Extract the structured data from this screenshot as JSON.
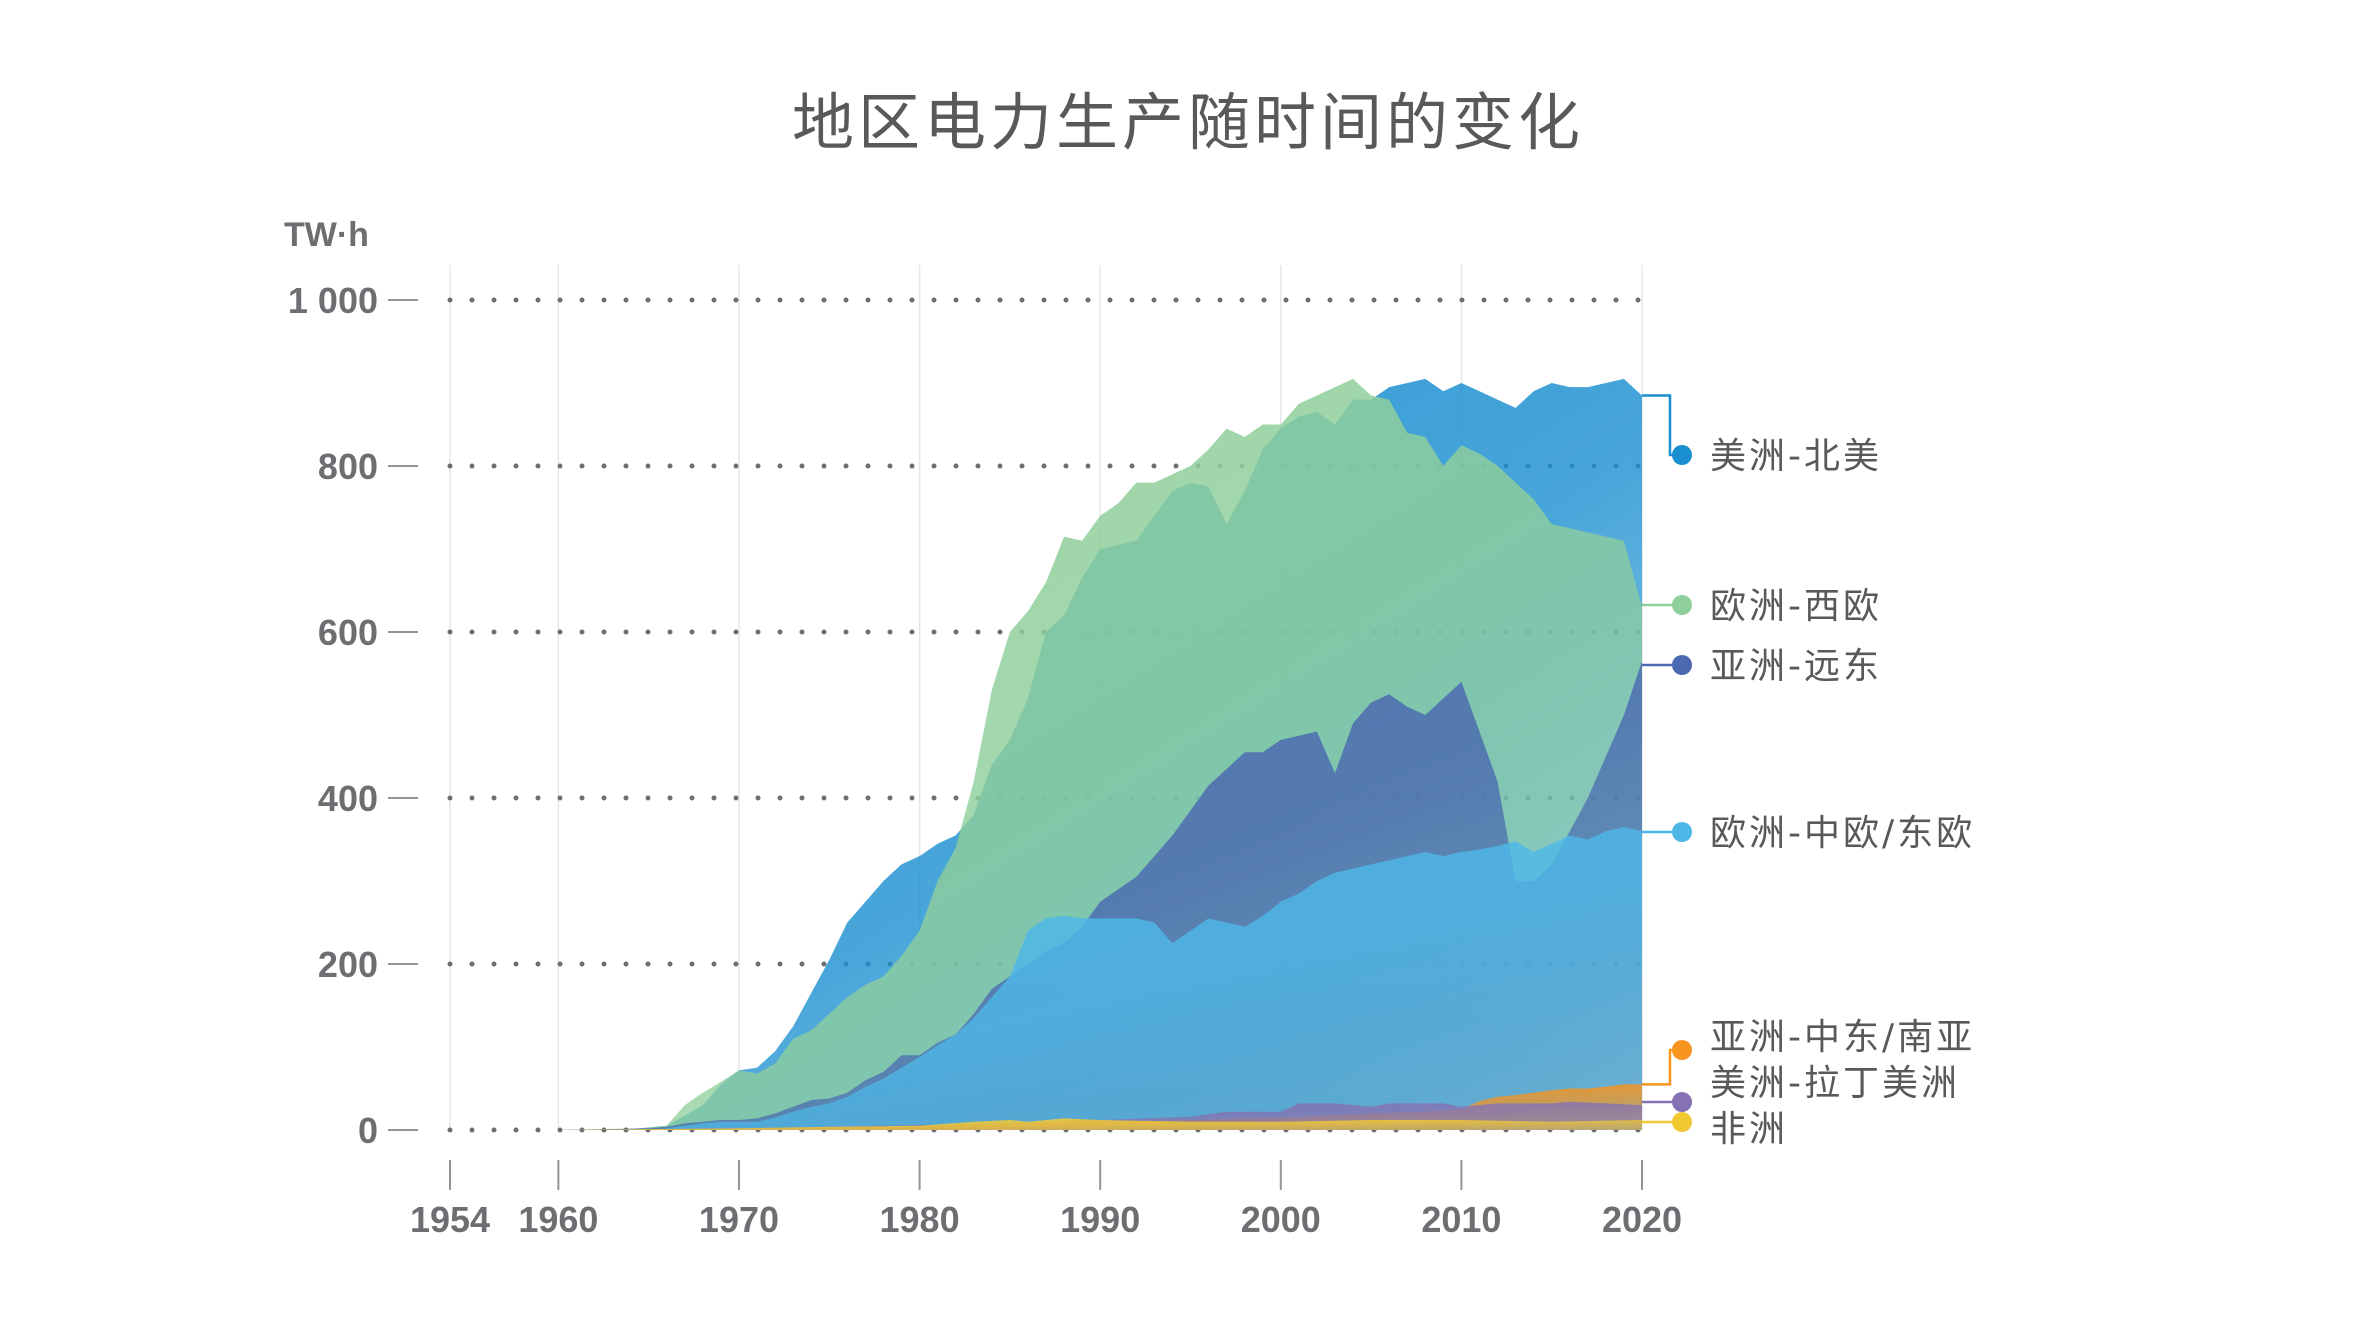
{
  "chart_data": {
    "type": "area",
    "title": "地区电力生产随时间的变化",
    "ylabel": "TW·h",
    "xlabel": "",
    "xlim": [
      1954,
      2020
    ],
    "ylim": [
      0,
      1000
    ],
    "x_ticks": [
      "1954",
      "1960",
      "1970",
      "1980",
      "1990",
      "2000",
      "2010",
      "2020"
    ],
    "y_ticks": [
      "0",
      "200",
      "400",
      "600",
      "800",
      "1 000"
    ],
    "grid": "dotted horizontal at y ticks, faint vertical at x ticks",
    "legend_placement": "right",
    "series": [
      {
        "name": "美洲-北美",
        "color": "#1a8fd0",
        "points": [
          [
            1954,
            0
          ],
          [
            1960,
            0
          ],
          [
            1964,
            1
          ],
          [
            1966,
            5
          ],
          [
            1968,
            30
          ],
          [
            1969,
            55
          ],
          [
            1970,
            72
          ],
          [
            1971,
            75
          ],
          [
            1972,
            95
          ],
          [
            1973,
            125
          ],
          [
            1974,
            165
          ],
          [
            1975,
            205
          ],
          [
            1976,
            250
          ],
          [
            1977,
            275
          ],
          [
            1978,
            300
          ],
          [
            1979,
            320
          ],
          [
            1980,
            330
          ],
          [
            1981,
            345
          ],
          [
            1982,
            355
          ],
          [
            1983,
            380
          ],
          [
            1984,
            440
          ],
          [
            1985,
            470
          ],
          [
            1986,
            520
          ],
          [
            1987,
            600
          ],
          [
            1988,
            620
          ],
          [
            1989,
            665
          ],
          [
            1990,
            700
          ],
          [
            1991,
            705
          ],
          [
            1992,
            710
          ],
          [
            1993,
            740
          ],
          [
            1994,
            770
          ],
          [
            1995,
            780
          ],
          [
            1996,
            775
          ],
          [
            1997,
            730
          ],
          [
            1998,
            770
          ],
          [
            1999,
            820
          ],
          [
            2000,
            845
          ],
          [
            2001,
            860
          ],
          [
            2002,
            865
          ],
          [
            2003,
            850
          ],
          [
            2004,
            880
          ],
          [
            2005,
            880
          ],
          [
            2006,
            895
          ],
          [
            2007,
            900
          ],
          [
            2008,
            905
          ],
          [
            2009,
            890
          ],
          [
            2010,
            900
          ],
          [
            2011,
            890
          ],
          [
            2012,
            880
          ],
          [
            2013,
            870
          ],
          [
            2014,
            890
          ],
          [
            2015,
            900
          ],
          [
            2016,
            895
          ],
          [
            2017,
            895
          ],
          [
            2018,
            900
          ],
          [
            2019,
            905
          ],
          [
            2020,
            885
          ]
        ]
      },
      {
        "name": "欧洲-西欧",
        "color": "#8fcf9b",
        "points": [
          [
            1954,
            0
          ],
          [
            1960,
            0
          ],
          [
            1964,
            1
          ],
          [
            1966,
            5
          ],
          [
            1967,
            30
          ],
          [
            1968,
            45
          ],
          [
            1969,
            58
          ],
          [
            1970,
            72
          ],
          [
            1971,
            68
          ],
          [
            1972,
            80
          ],
          [
            1973,
            110
          ],
          [
            1974,
            120
          ],
          [
            1975,
            140
          ],
          [
            1976,
            160
          ],
          [
            1977,
            175
          ],
          [
            1978,
            185
          ],
          [
            1979,
            210
          ],
          [
            1980,
            240
          ],
          [
            1981,
            300
          ],
          [
            1982,
            340
          ],
          [
            1983,
            420
          ],
          [
            1984,
            530
          ],
          [
            1985,
            600
          ],
          [
            1986,
            625
          ],
          [
            1987,
            660
          ],
          [
            1988,
            715
          ],
          [
            1989,
            710
          ],
          [
            1990,
            740
          ],
          [
            1991,
            755
          ],
          [
            1992,
            780
          ],
          [
            1993,
            780
          ],
          [
            1994,
            790
          ],
          [
            1995,
            800
          ],
          [
            1996,
            820
          ],
          [
            1997,
            845
          ],
          [
            1998,
            835
          ],
          [
            1999,
            850
          ],
          [
            2000,
            850
          ],
          [
            2001,
            875
          ],
          [
            2002,
            885
          ],
          [
            2003,
            895
          ],
          [
            2004,
            905
          ],
          [
            2005,
            885
          ],
          [
            2006,
            880
          ],
          [
            2007,
            840
          ],
          [
            2008,
            835
          ],
          [
            2009,
            800
          ],
          [
            2010,
            825
          ],
          [
            2011,
            815
          ],
          [
            2012,
            800
          ],
          [
            2013,
            780
          ],
          [
            2014,
            760
          ],
          [
            2015,
            730
          ],
          [
            2016,
            725
          ],
          [
            2017,
            720
          ],
          [
            2018,
            715
          ],
          [
            2019,
            710
          ],
          [
            2020,
            630
          ]
        ]
      },
      {
        "name": "亚洲-远东",
        "color": "#4a69b0",
        "points": [
          [
            1954,
            0
          ],
          [
            1960,
            0
          ],
          [
            1965,
            2
          ],
          [
            1966,
            4
          ],
          [
            1967,
            8
          ],
          [
            1968,
            10
          ],
          [
            1969,
            12
          ],
          [
            1970,
            12
          ],
          [
            1971,
            14
          ],
          [
            1972,
            20
          ],
          [
            1973,
            28
          ],
          [
            1974,
            36
          ],
          [
            1975,
            38
          ],
          [
            1976,
            45
          ],
          [
            1977,
            60
          ],
          [
            1978,
            70
          ],
          [
            1979,
            90
          ],
          [
            1980,
            90
          ],
          [
            1981,
            105
          ],
          [
            1982,
            115
          ],
          [
            1983,
            140
          ],
          [
            1984,
            170
          ],
          [
            1985,
            185
          ],
          [
            1986,
            200
          ],
          [
            1987,
            215
          ],
          [
            1988,
            225
          ],
          [
            1989,
            245
          ],
          [
            1990,
            275
          ],
          [
            1991,
            290
          ],
          [
            1992,
            305
          ],
          [
            1993,
            330
          ],
          [
            1994,
            355
          ],
          [
            1995,
            385
          ],
          [
            1996,
            415
          ],
          [
            1997,
            435
          ],
          [
            1998,
            455
          ],
          [
            1999,
            455
          ],
          [
            2000,
            470
          ],
          [
            2001,
            475
          ],
          [
            2002,
            480
          ],
          [
            2003,
            430
          ],
          [
            2004,
            490
          ],
          [
            2005,
            515
          ],
          [
            2006,
            525
          ],
          [
            2007,
            510
          ],
          [
            2008,
            500
          ],
          [
            2009,
            520
          ],
          [
            2010,
            540
          ],
          [
            2011,
            480
          ],
          [
            2012,
            420
          ],
          [
            2013,
            300
          ],
          [
            2014,
            300
          ],
          [
            2015,
            320
          ],
          [
            2016,
            360
          ],
          [
            2017,
            400
          ],
          [
            2018,
            450
          ],
          [
            2019,
            500
          ],
          [
            2020,
            565
          ]
        ]
      },
      {
        "name": "欧洲-中欧/东欧",
        "color": "#4db8e8",
        "points": [
          [
            1954,
            0
          ],
          [
            1960,
            0
          ],
          [
            1965,
            0
          ],
          [
            1966,
            2
          ],
          [
            1967,
            5
          ],
          [
            1968,
            8
          ],
          [
            1969,
            10
          ],
          [
            1970,
            10
          ],
          [
            1971,
            10
          ],
          [
            1972,
            15
          ],
          [
            1973,
            22
          ],
          [
            1974,
            28
          ],
          [
            1975,
            32
          ],
          [
            1976,
            40
          ],
          [
            1977,
            52
          ],
          [
            1978,
            62
          ],
          [
            1979,
            75
          ],
          [
            1980,
            88
          ],
          [
            1981,
            102
          ],
          [
            1982,
            115
          ],
          [
            1983,
            135
          ],
          [
            1984,
            160
          ],
          [
            1985,
            185
          ],
          [
            1986,
            240
          ],
          [
            1987,
            255
          ],
          [
            1988,
            258
          ],
          [
            1989,
            255
          ],
          [
            1990,
            255
          ],
          [
            1991,
            255
          ],
          [
            1992,
            255
          ],
          [
            1993,
            250
          ],
          [
            1994,
            225
          ],
          [
            1995,
            240
          ],
          [
            1996,
            255
          ],
          [
            1997,
            250
          ],
          [
            1998,
            245
          ],
          [
            1999,
            258
          ],
          [
            2000,
            275
          ],
          [
            2001,
            285
          ],
          [
            2002,
            300
          ],
          [
            2003,
            310
          ],
          [
            2004,
            315
          ],
          [
            2005,
            320
          ],
          [
            2006,
            325
          ],
          [
            2007,
            330
          ],
          [
            2008,
            335
          ],
          [
            2009,
            330
          ],
          [
            2010,
            335
          ],
          [
            2011,
            338
          ],
          [
            2012,
            342
          ],
          [
            2013,
            348
          ],
          [
            2014,
            335
          ],
          [
            2015,
            345
          ],
          [
            2016,
            355
          ],
          [
            2017,
            350
          ],
          [
            2018,
            360
          ],
          [
            2019,
            365
          ],
          [
            2020,
            360
          ]
        ]
      },
      {
        "name": "亚洲-中东/南亚",
        "color": "#f7941d",
        "points": [
          [
            1954,
            0
          ],
          [
            1960,
            0
          ],
          [
            1970,
            1
          ],
          [
            1975,
            3
          ],
          [
            1980,
            5
          ],
          [
            1985,
            8
          ],
          [
            1990,
            10
          ],
          [
            1995,
            12
          ],
          [
            2000,
            15
          ],
          [
            2005,
            20
          ],
          [
            2008,
            22
          ],
          [
            2010,
            25
          ],
          [
            2011,
            35
          ],
          [
            2012,
            40
          ],
          [
            2013,
            42
          ],
          [
            2014,
            45
          ],
          [
            2015,
            48
          ],
          [
            2016,
            50
          ],
          [
            2017,
            50
          ],
          [
            2018,
            52
          ],
          [
            2019,
            55
          ],
          [
            2020,
            55
          ]
        ]
      },
      {
        "name": "美洲-拉丁美洲",
        "color": "#8572b2",
        "points": [
          [
            1954,
            0
          ],
          [
            1960,
            0
          ],
          [
            1970,
            2
          ],
          [
            1975,
            4
          ],
          [
            1980,
            6
          ],
          [
            1985,
            8
          ],
          [
            1990,
            12
          ],
          [
            1995,
            16
          ],
          [
            1997,
            22
          ],
          [
            2000,
            22
          ],
          [
            2001,
            32
          ],
          [
            2003,
            32
          ],
          [
            2005,
            28
          ],
          [
            2006,
            32
          ],
          [
            2009,
            32
          ],
          [
            2010,
            28
          ],
          [
            2012,
            32
          ],
          [
            2015,
            32
          ],
          [
            2016,
            34
          ],
          [
            2018,
            32
          ],
          [
            2020,
            30
          ]
        ]
      },
      {
        "name": "非洲",
        "color": "#f2c832",
        "points": [
          [
            1954,
            0
          ],
          [
            1960,
            0
          ],
          [
            1970,
            2
          ],
          [
            1975,
            4
          ],
          [
            1980,
            5
          ],
          [
            1983,
            10
          ],
          [
            1985,
            12
          ],
          [
            1986,
            10
          ],
          [
            1988,
            14
          ],
          [
            1990,
            12
          ],
          [
            1995,
            10
          ],
          [
            2000,
            10
          ],
          [
            2005,
            12
          ],
          [
            2010,
            12
          ],
          [
            2015,
            10
          ],
          [
            2020,
            12
          ]
        ]
      }
    ]
  }
}
